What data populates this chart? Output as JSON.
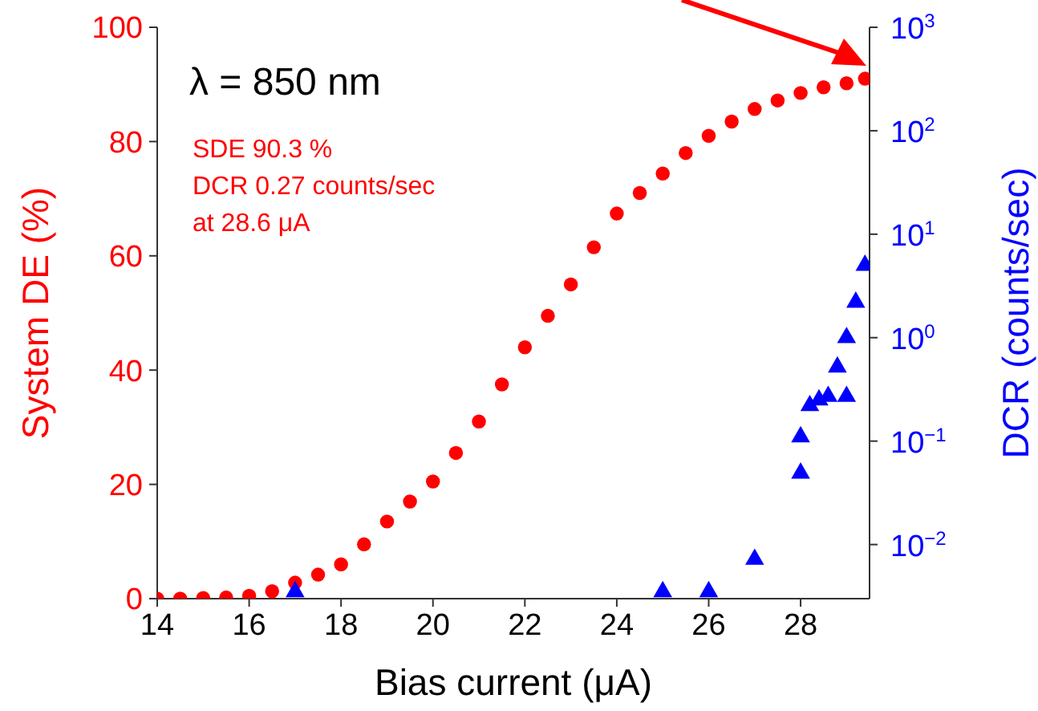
{
  "chart_data": {
    "type": "scatter",
    "xlabel": "Bias current (μA)",
    "ylabel": "System DE (%)",
    "y2label": "DCR (counts/sec)",
    "annotations": [
      "λ = 850 nm",
      "SDE 90.3 %",
      "DCR 0.27 counts/sec",
      "at 28.6 μA"
    ],
    "xlim": [
      14,
      29.5
    ],
    "xticks": [
      14,
      16,
      18,
      20,
      22,
      24,
      26,
      28
    ],
    "ylim": [
      0,
      100
    ],
    "yticks": [
      0,
      20,
      40,
      60,
      80,
      100
    ],
    "y2lim": [
      0.003,
      1000
    ],
    "y2ticks": [
      {
        "value": 0.01,
        "label": "10$^{−2}$"
      },
      {
        "value": 0.1,
        "label": "10$^{−1}$"
      },
      {
        "value": 1,
        "label": "10$^{0}$"
      },
      {
        "value": 10,
        "label": "10$^{1}$"
      },
      {
        "value": 100,
        "label": "10$^{2}$"
      },
      {
        "value": 1000,
        "label": "10$^{3}$"
      }
    ],
    "log": "y2",
    "grid": false,
    "legend": false,
    "series": [
      {
        "color": "#ff0000",
        "marker": "circle",
        "x": [
          14,
          14.5,
          15,
          15.5,
          16,
          16.5,
          17,
          17.5,
          18,
          18.5,
          19,
          19.5,
          20,
          20.5,
          21,
          21.5,
          22,
          22.5,
          23,
          23.5,
          24,
          24.5,
          25,
          25.5,
          26,
          26.5,
          27,
          27.5,
          28,
          28.5,
          29,
          29.4
        ],
        "values": [
          0,
          0,
          0.1,
          0.2,
          0.5,
          1.3,
          2.8,
          4.2,
          6,
          9.5,
          13.5,
          17,
          20.5,
          25.5,
          31,
          37.5,
          44,
          49.5,
          55,
          61.5,
          67.4,
          71,
          74.4,
          78,
          81,
          83.5,
          85.7,
          87.2,
          88.5,
          89.5,
          90.2,
          91
        ]
      },
      {
        "color": "#0000ff",
        "marker": "triangle",
        "axis": "y2",
        "x": [
          17,
          25,
          26,
          27,
          28,
          28,
          28.2,
          28.4,
          28.6,
          28.8,
          29,
          29,
          29.2,
          29.4
        ],
        "values": [
          0.0035,
          0.0035,
          0.0035,
          0.0072,
          0.049,
          0.11,
          0.22,
          0.25,
          0.27,
          0.52,
          1.0,
          0.27,
          2.2,
          5.0
        ]
      }
    ]
  }
}
